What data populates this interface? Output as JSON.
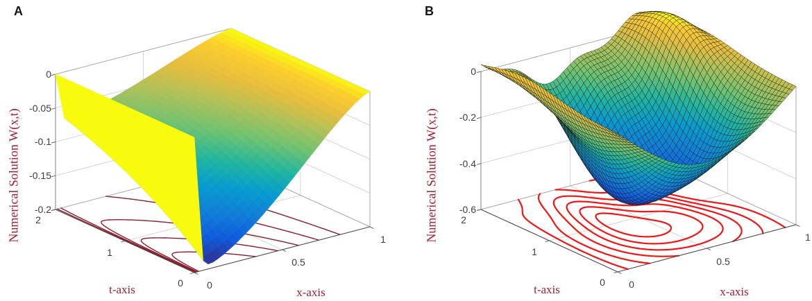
{
  "figure": {
    "description": "Two 3D surface plots of a numerical solution W(x,t) over x in [0,1], t in [0,2], each with level-set contour lines projected on the bottom plane",
    "background": "#ffffff"
  },
  "chart_data": [
    {
      "type": "surface3d-with-floor-contours",
      "panel_label": "A",
      "z_axis": {
        "label": "Numerical Solution W(x,t)",
        "tick_labels": [
          "0",
          "-0.05",
          "-0.1",
          "-0.15",
          "-0.2"
        ],
        "tick_values": [
          0,
          -0.05,
          -0.1,
          -0.15,
          -0.2
        ],
        "range": [
          -0.2,
          0
        ]
      },
      "x_axis": {
        "label": "x-axis",
        "tick_labels": [
          "0",
          "0.5",
          "1"
        ],
        "tick_values": [
          0,
          0.5,
          1
        ],
        "range": [
          0,
          1
        ]
      },
      "t_axis": {
        "label": "t-axis",
        "tick_labels": [
          "2",
          "1",
          "0"
        ],
        "tick_values": [
          2,
          1,
          0
        ],
        "range": [
          0,
          2
        ]
      },
      "surface": {
        "colormap": "parula",
        "shading": "flat",
        "mesh_lines": false,
        "model": {
          "kind": "decay-boundary-layer",
          "amp": 0.2,
          "layer": 0.018,
          "shape_pow": 1.6,
          "shape_exp": 1.4,
          "decay": 0.5
        },
        "grid": {
          "x_first_step": 0.05,
          "x_steps": 33,
          "t_steps": 26
        },
        "min_value": -0.2,
        "max_value": 0,
        "boundary_values": {
          "W_at_x0": 0,
          "W_at_x1": 0
        }
      },
      "contours": {
        "color": "#8e1b2b",
        "line_width": 1.4,
        "levels": [
          -0.15,
          -0.12,
          -0.09,
          -0.06,
          -0.03
        ]
      },
      "style": {
        "axis_label_color": "#a51c30",
        "tick_color": "#3d3d3d",
        "grid_color": "#cccccc",
        "box_color": "#a9a9a9",
        "front_edge_color": "#4a4a4a"
      }
    },
    {
      "type": "surface3d-with-floor-contours",
      "panel_label": "B",
      "z_axis": {
        "label": "Numerical Solution W(x,t)",
        "tick_labels": [
          "0",
          "-0.2",
          "-0.4",
          "-0.6"
        ],
        "tick_values": [
          0,
          -0.2,
          -0.4,
          -0.6
        ],
        "range": [
          -0.6,
          0
        ]
      },
      "x_axis": {
        "label": "x-axis",
        "tick_labels": [
          "0",
          "0.5",
          "1"
        ],
        "tick_values": [
          0,
          0.5,
          1
        ],
        "range": [
          0,
          1
        ]
      },
      "t_axis": {
        "label": "t-axis",
        "tick_labels": [
          "2",
          "1",
          "0"
        ],
        "tick_values": [
          2,
          1,
          0
        ],
        "range": [
          0,
          2
        ]
      },
      "surface": {
        "colormap": "parula",
        "shading": "flat",
        "mesh_lines": true,
        "mesh_color": "#1b1b1b",
        "model": {
          "kind": "two-mode-wave",
          "a1": 0.44,
          "c1": 0.7,
          "w1": 0.85,
          "a2": 0.19,
          "phase": 0.12,
          "c2": 1.4,
          "w2": 0.7
        },
        "grid": {
          "x_steps": 52,
          "t_steps": 40
        },
        "min_value": -0.5,
        "max_value": 0.1,
        "boundary_values": {
          "W_at_x0": 0
        }
      },
      "contours": {
        "color": "#f41414",
        "line_width": 2.2,
        "levels": [
          -0.44,
          -0.36,
          -0.28,
          -0.2,
          -0.12,
          -0.04
        ]
      },
      "style": {
        "axis_label_color": "#a51c30",
        "tick_color": "#3d3d3d",
        "grid_color": "#cccccc",
        "box_color": "#a9a9a9",
        "front_edge_color": "#4a4a4a"
      }
    }
  ]
}
